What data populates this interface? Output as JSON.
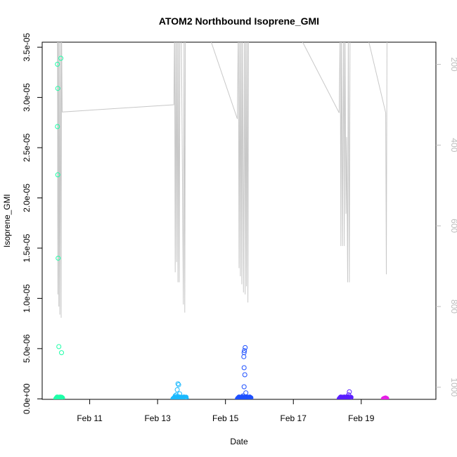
{
  "chart_data": {
    "type": "scatter",
    "title": "ATOM2 Northbound Isoprene_GMI",
    "xlabel": "Date",
    "ylabel": "Isoprene_GMI",
    "x_axis": {
      "unit": "days",
      "range": [
        9.6,
        21.2
      ],
      "ticks": [
        {
          "value": 11,
          "label": "Feb 11"
        },
        {
          "value": 13,
          "label": "Feb 13"
        },
        {
          "value": 15,
          "label": "Feb 15"
        },
        {
          "value": 17,
          "label": "Feb 17"
        },
        {
          "value": 19,
          "label": "Feb 19"
        }
      ]
    },
    "y_axis": {
      "range": [
        -5e-08,
        3.55e-05
      ],
      "ticks": [
        {
          "value": 0,
          "label": "0.0e+00"
        },
        {
          "value": 5e-06,
          "label": "5.0e-06"
        },
        {
          "value": 1e-05,
          "label": "1.0e-05"
        },
        {
          "value": 1.5e-05,
          "label": "1.5e-05"
        },
        {
          "value": 2e-05,
          "label": "2.0e-05"
        },
        {
          "value": 2.5e-05,
          "label": "2.5e-05"
        },
        {
          "value": 3e-05,
          "label": "3.0e-05"
        },
        {
          "value": 3.5e-05,
          "label": "3.5e-05"
        }
      ]
    },
    "y2_axis": {
      "reversed": true,
      "color": "#bdbdbd",
      "range": [
        1030,
        145
      ],
      "ticks": [
        {
          "value": 200,
          "label": "200"
        },
        {
          "value": 400,
          "label": "400"
        },
        {
          "value": 600,
          "label": "600"
        },
        {
          "value": 800,
          "label": "800"
        },
        {
          "value": 1000,
          "label": "1000"
        }
      ]
    },
    "pressure_series": {
      "color": "#c8c8c8",
      "points": [
        [
          10.05,
          100
        ],
        [
          10.06,
          770
        ],
        [
          10.07,
          100
        ],
        [
          10.09,
          800
        ],
        [
          10.1,
          100
        ],
        [
          10.12,
          820
        ],
        [
          10.14,
          100
        ],
        [
          10.16,
          828
        ],
        [
          10.17,
          100
        ],
        [
          10.19,
          318
        ],
        [
          13.48,
          300
        ],
        [
          13.5,
          100
        ],
        [
          13.52,
          715
        ],
        [
          13.54,
          100
        ],
        [
          13.56,
          690
        ],
        [
          13.58,
          100
        ],
        [
          13.6,
          740
        ],
        [
          13.62,
          100
        ],
        [
          13.64,
          740
        ],
        [
          13.66,
          100
        ],
        [
          13.7,
          100
        ],
        [
          13.76,
          795
        ],
        [
          13.78,
          100
        ],
        [
          13.8,
          815
        ],
        [
          13.82,
          100
        ],
        [
          14.4,
          100
        ],
        [
          15.35,
          335
        ],
        [
          15.38,
          100
        ],
        [
          15.4,
          705
        ],
        [
          15.42,
          100
        ],
        [
          15.44,
          725
        ],
        [
          15.46,
          100
        ],
        [
          15.48,
          745
        ],
        [
          15.5,
          100
        ],
        [
          15.53,
          765
        ],
        [
          15.56,
          100
        ],
        [
          15.58,
          770
        ],
        [
          15.6,
          100
        ],
        [
          15.62,
          750
        ],
        [
          15.64,
          100
        ],
        [
          15.66,
          790
        ],
        [
          15.68,
          100
        ],
        [
          17.0,
          100
        ],
        [
          18.35,
          320
        ],
        [
          18.38,
          100
        ],
        [
          18.4,
          650
        ],
        [
          18.42,
          100
        ],
        [
          18.45,
          650
        ],
        [
          18.48,
          100
        ],
        [
          18.5,
          650
        ],
        [
          18.52,
          100
        ],
        [
          18.55,
          570
        ],
        [
          18.57,
          380
        ],
        [
          18.6,
          740
        ],
        [
          18.62,
          100
        ],
        [
          18.65,
          740
        ],
        [
          18.67,
          100
        ],
        [
          19.1,
          100
        ],
        [
          19.72,
          320
        ],
        [
          19.74,
          720
        ],
        [
          19.76,
          100
        ]
      ]
    },
    "series": [
      {
        "color": "#1effa8",
        "points": [
          [
            10.05,
            3.33e-05
          ],
          [
            10.06,
            3.09e-05
          ],
          [
            10.05,
            2.71e-05
          ],
          [
            10.06,
            2.23e-05
          ],
          [
            10.07,
            1.4e-05
          ],
          [
            10.09,
            5.2e-06
          ],
          [
            10.15,
            3.39e-05
          ],
          [
            10.17,
            4.6e-06
          ]
        ],
        "cluster": {
          "x0": 10.0,
          "x1": 10.2,
          "ymax": 2e-07,
          "n": 30
        }
      },
      {
        "color": "#1ab9ff",
        "points": [
          [
            13.6,
            1.5e-06
          ],
          [
            13.62,
            1.4e-06
          ],
          [
            13.58,
            9e-07
          ],
          [
            13.55,
            4e-07
          ],
          [
            13.65,
            5e-07
          ],
          [
            13.52,
            3e-07
          ]
        ],
        "cluster": {
          "x0": 13.45,
          "x1": 13.85,
          "ymax": 2e-07,
          "n": 40
        }
      },
      {
        "color": "#1e50ff",
        "points": [
          [
            15.58,
            5.1e-06
          ],
          [
            15.56,
            4.8e-06
          ],
          [
            15.55,
            4.6e-06
          ],
          [
            15.54,
            4.2e-06
          ],
          [
            15.55,
            3.1e-06
          ],
          [
            15.57,
            2.4e-06
          ],
          [
            15.55,
            1.2e-06
          ],
          [
            15.6,
            6e-07
          ],
          [
            15.52,
            3e-07
          ]
        ],
        "cluster": {
          "x0": 15.35,
          "x1": 15.75,
          "ymax": 2e-07,
          "n": 50
        }
      },
      {
        "color": "#5a1eff",
        "points": [
          [
            18.65,
            7e-07
          ],
          [
            18.63,
            4e-07
          ],
          [
            18.6,
            2e-07
          ]
        ],
        "cluster": {
          "x0": 18.35,
          "x1": 18.7,
          "ymax": 2e-07,
          "n": 45
        }
      },
      {
        "color": "#e61ee6",
        "points": [],
        "cluster": {
          "x0": 19.65,
          "x1": 19.75,
          "ymax": 1e-07,
          "n": 10
        }
      }
    ]
  }
}
